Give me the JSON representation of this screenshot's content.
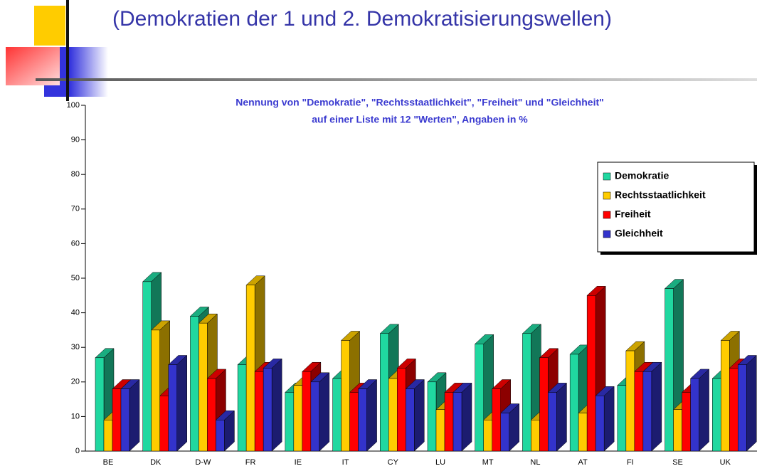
{
  "header": {
    "title": "(Demokratien der 1 und 2. Demokratisierungswellen)"
  },
  "chart_data": {
    "type": "bar",
    "title": [
      "Nennung von \"Demokratie\", \"Rechtsstaatlichkeit\", \"Freiheit\" und \"Gleichheit\"",
      "auf einer Liste mit 12 \"Werten\", Angaben in %"
    ],
    "categories": [
      "BE",
      "DK",
      "D-W",
      "FR",
      "IE",
      "IT",
      "CY",
      "LU",
      "MT",
      "NL",
      "AT",
      "FI",
      "SE",
      "UK"
    ],
    "series": [
      {
        "name": "Demokratie",
        "color": "#20d8a0",
        "values": [
          27,
          49,
          39,
          25,
          17,
          21,
          34,
          20,
          31,
          34,
          28,
          19,
          47,
          21
        ]
      },
      {
        "name": "Rechtsstaatlichkeit",
        "color": "#ffcc00",
        "values": [
          9,
          35,
          37,
          48,
          19,
          32,
          21,
          12,
          9,
          9,
          11,
          29,
          12,
          32
        ]
      },
      {
        "name": "Freiheit",
        "color": "#ff0000",
        "values": [
          18,
          16,
          21,
          23,
          23,
          17,
          24,
          17,
          18,
          27,
          45,
          23,
          17,
          24
        ]
      },
      {
        "name": "Gleichheit",
        "color": "#3333cc",
        "values": [
          18,
          25,
          9,
          24,
          20,
          18,
          18,
          17,
          11,
          17,
          16,
          23,
          21,
          25
        ]
      }
    ],
    "ylim": [
      0,
      100
    ],
    "yticks": [
      0,
      10,
      20,
      30,
      40,
      50,
      60,
      70,
      80,
      90,
      100
    ]
  }
}
